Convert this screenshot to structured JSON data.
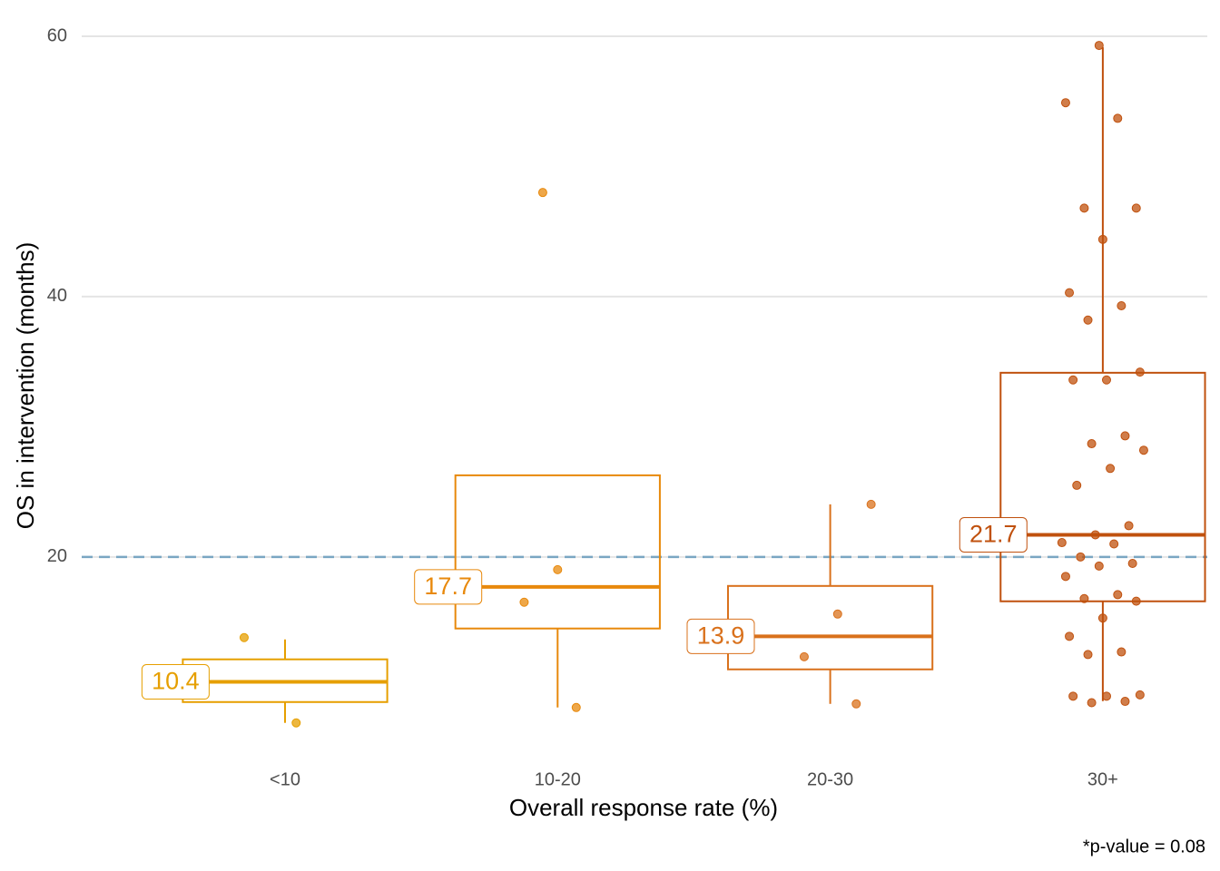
{
  "chart_data": {
    "type": "box",
    "x_label": "Overall response rate (%)",
    "y_label": "OS in intervention (months)",
    "annotation": "*p-value = 0.08",
    "categories": [
      "<10",
      "10-20",
      "20-30",
      "30+"
    ],
    "ylim": [
      5,
      60.7
    ],
    "yticks": [
      20,
      40,
      60
    ],
    "grid": true,
    "reference_line": {
      "value": 20,
      "color": "#7aa6c2"
    },
    "boxes": [
      {
        "color": "#e69f00",
        "q1": 8.85,
        "median": 10.4,
        "q3": 12.13,
        "whisker_low": 7.25,
        "whisker_high": 13.66,
        "points": [
          13.8,
          7.25
        ]
      },
      {
        "color": "#e8890c",
        "q1": 14.5,
        "median": 17.7,
        "q3": 26.27,
        "whisker_low": 8.43,
        "whisker_high": 26.27,
        "points": [
          19.02,
          16.52,
          8.43,
          48.0
        ]
      },
      {
        "color": "#d9711c",
        "q1": 11.36,
        "median": 13.9,
        "q3": 17.77,
        "whisker_low": 8.71,
        "whisker_high": 24.04,
        "points": [
          24.04,
          15.61,
          12.33,
          8.71
        ]
      },
      {
        "color": "#c0510e",
        "q1": 16.59,
        "median": 21.7,
        "q3": 34.15,
        "whisker_low": 8.92,
        "whisker_high": 59.16,
        "points": [
          59.3,
          54.9,
          53.7,
          46.8,
          46.8,
          44.4,
          40.3,
          39.3,
          38.2,
          34.2,
          33.6,
          33.6,
          29.3,
          28.7,
          28.2,
          26.8,
          25.5,
          22.4,
          21.7,
          21.1,
          21.0,
          20.0,
          19.5,
          19.3,
          18.5,
          17.1,
          16.8,
          16.6,
          15.3,
          13.9,
          12.7,
          12.5,
          9.4,
          9.3,
          9.3,
          8.9,
          8.8
        ]
      }
    ]
  }
}
